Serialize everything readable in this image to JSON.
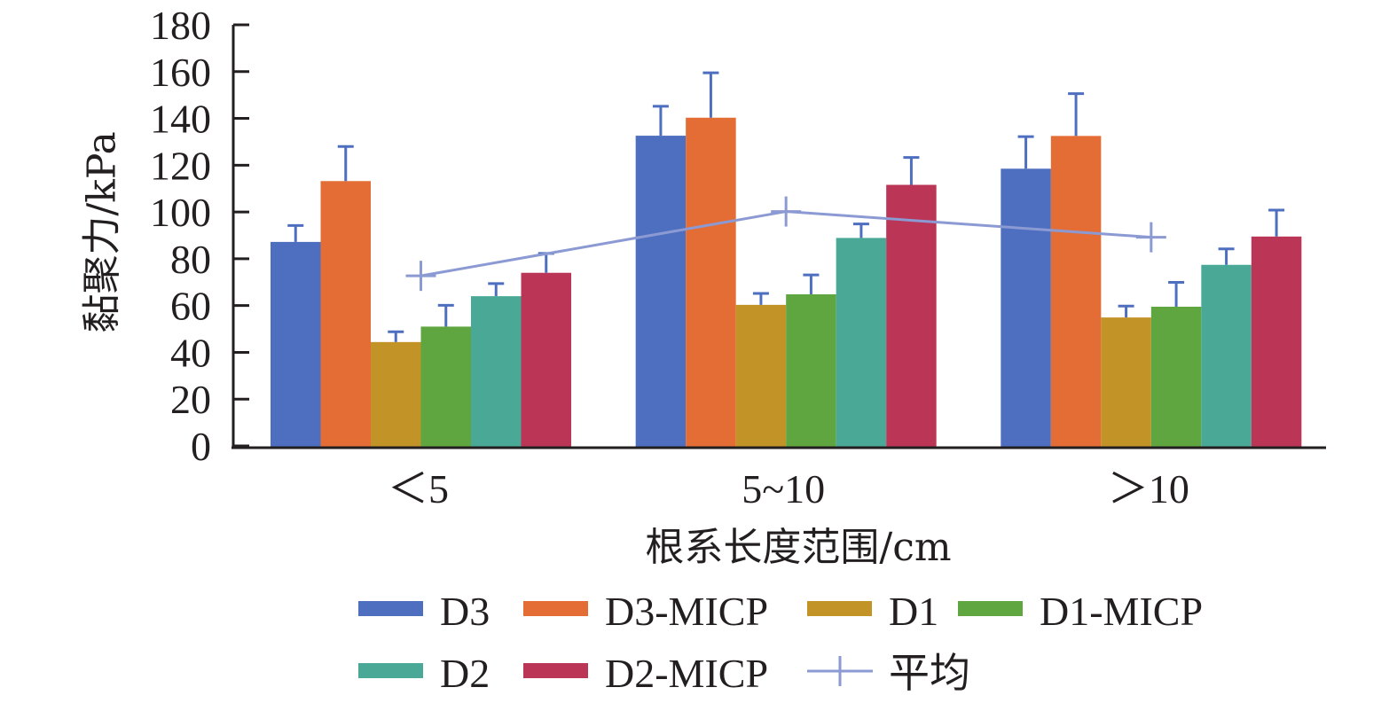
{
  "chart_data": {
    "type": "bar",
    "title": "",
    "xlabel": "根系长度范围/cm",
    "ylabel": "黏聚力/kPa",
    "ylim": [
      0,
      180
    ],
    "yticks": [
      0,
      20,
      40,
      60,
      80,
      100,
      120,
      140,
      160,
      180
    ],
    "grid": false,
    "categories": [
      "＜5",
      "5~10",
      "＞10"
    ],
    "series": [
      {
        "name": "D3",
        "color": "#4e6fbf",
        "values": [
          87.2,
          132.6,
          118.5
        ],
        "error": [
          7.0,
          12.6,
          13.7
        ]
      },
      {
        "name": "D3-MICP",
        "color": "#e36d35",
        "values": [
          113.2,
          140.3,
          132.5
        ],
        "error": [
          14.8,
          19.2,
          18.1
        ]
      },
      {
        "name": "D1",
        "color": "#c29326",
        "values": [
          44.4,
          60.3,
          54.9
        ],
        "error": [
          4.4,
          4.9,
          4.9
        ]
      },
      {
        "name": "D1-MICP",
        "color": "#60a640",
        "values": [
          51.0,
          64.8,
          59.5
        ],
        "error": [
          9.1,
          8.3,
          10.4
        ]
      },
      {
        "name": "D2",
        "color": "#4aa996",
        "values": [
          64.0,
          88.9,
          77.4
        ],
        "error": [
          5.4,
          6.0,
          6.8
        ]
      },
      {
        "name": "D2-MICP",
        "color": "#bb3556",
        "values": [
          74.0,
          111.6,
          89.5
        ],
        "error": [
          8.3,
          11.7,
          11.3
        ]
      }
    ],
    "line_series": {
      "name": "平均",
      "color": "#8b9ad3",
      "values": [
        72.7,
        100.2,
        89.2
      ]
    },
    "error_bar_color": "#4e6fbf",
    "legend": {
      "placement": "bottom",
      "rows": [
        [
          "D3",
          "D3-MICP",
          "D1",
          "D1-MICP"
        ],
        [
          "D2",
          "D2-MICP",
          "平均"
        ]
      ]
    }
  }
}
